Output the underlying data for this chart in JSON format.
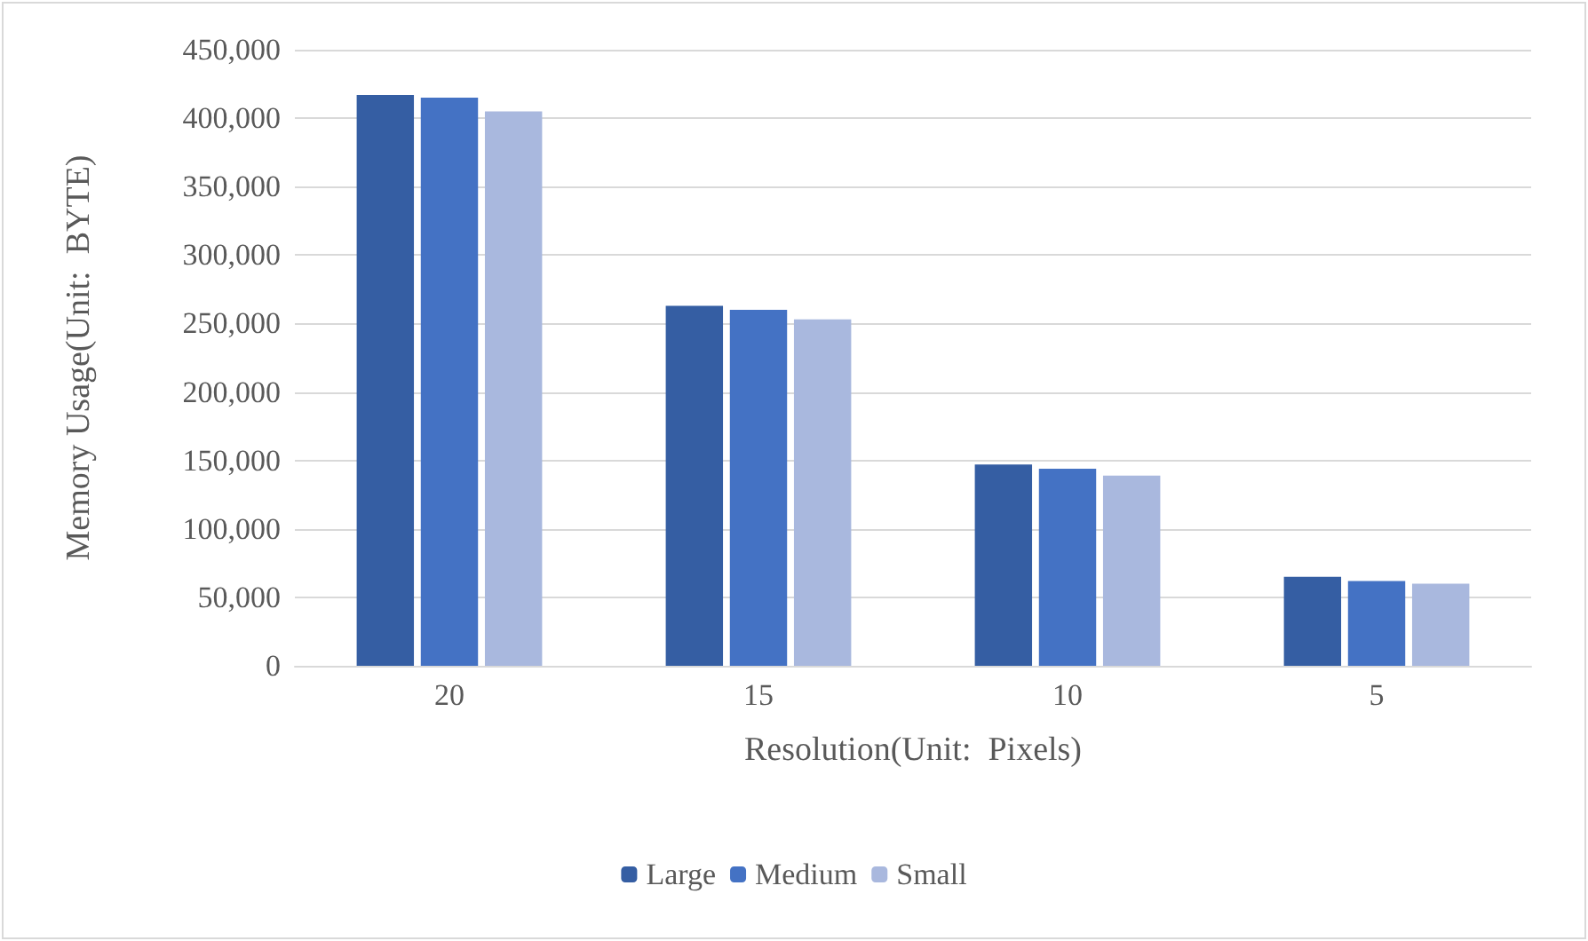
{
  "chart_data": {
    "type": "bar",
    "xlabel": "Resolution(Unit:  Pixels)",
    "ylabel": "Memory Usage(Unit:  BYTE)",
    "categories": [
      "20",
      "15",
      "10",
      "5"
    ],
    "series": [
      {
        "name": "Large",
        "color": "#355ea3",
        "values": [
          417000,
          263000,
          147000,
          65000
        ]
      },
      {
        "name": "Medium",
        "color": "#4472c4",
        "values": [
          415000,
          260000,
          144000,
          62000
        ]
      },
      {
        "name": "Small",
        "color": "#a9b8de",
        "values": [
          405000,
          253000,
          139000,
          60000
        ]
      }
    ],
    "ylim": [
      0,
      450000
    ],
    "yticks": [
      0,
      {
        "value": 50000,
        "label": "50,000"
      },
      {
        "value": 100000,
        "label": "100,000"
      },
      {
        "value": 150000,
        "label": "150,000"
      },
      {
        "value": 200000,
        "label": "200,000"
      },
      {
        "value": 250000,
        "label": "250,000"
      },
      {
        "value": 300000,
        "label": "300,000"
      },
      {
        "value": 350000,
        "label": "350,000"
      },
      {
        "value": 400000,
        "label": "400,000"
      },
      {
        "value": 450000,
        "label": "450,000"
      }
    ],
    "grid": "y",
    "legend": "bottom"
  }
}
